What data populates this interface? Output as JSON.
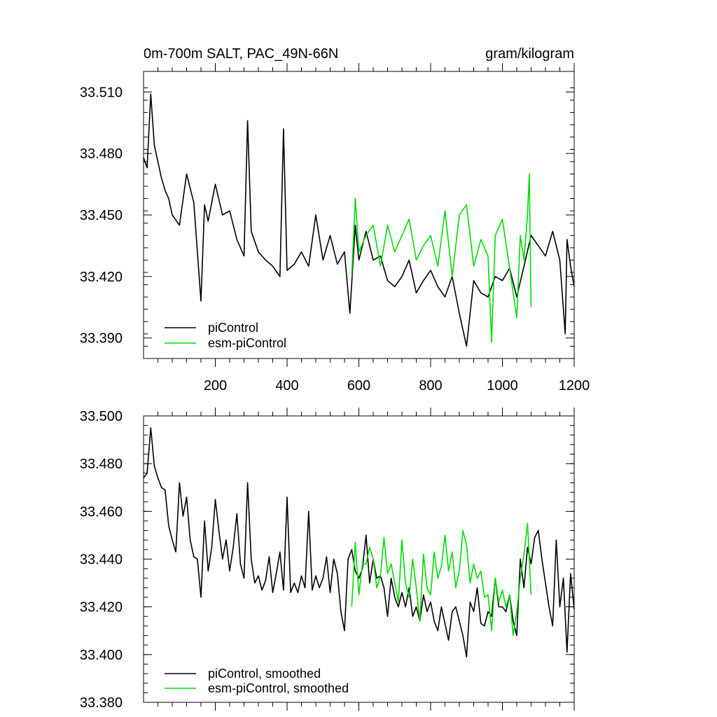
{
  "chart_data": [
    {
      "type": "line",
      "title": "0m-700m SALT, PAC_49N-66N",
      "units": "gram/kilogram",
      "xlim": [
        0,
        1200
      ],
      "ylim": [
        33.38,
        33.52
      ],
      "xticks": [
        200,
        400,
        600,
        800,
        1000,
        1200
      ],
      "xtick_labels": [
        "200",
        "400",
        "600",
        "800",
        "1000",
        "1200"
      ],
      "yticks": [
        33.39,
        33.42,
        33.45,
        33.48,
        33.51
      ],
      "ytick_labels": [
        "33.390",
        "33.420",
        "33.450",
        "33.480",
        "33.510"
      ],
      "legend_position": "bottom-left",
      "series": [
        {
          "name": "piControl",
          "color": "#000000",
          "x": [
            0,
            10,
            20,
            30,
            40,
            50,
            60,
            70,
            80,
            100,
            120,
            140,
            150,
            160,
            170,
            180,
            200,
            220,
            240,
            260,
            280,
            290,
            300,
            320,
            340,
            360,
            380,
            390,
            400,
            420,
            440,
            460,
            480,
            500,
            520,
            540,
            560,
            575,
            590,
            600,
            620,
            640,
            660,
            680,
            700,
            720,
            740,
            760,
            780,
            800,
            820,
            840,
            860,
            880,
            900,
            920,
            940,
            960,
            980,
            1000,
            1020,
            1040,
            1060,
            1080,
            1100,
            1120,
            1140,
            1160,
            1175,
            1180,
            1190,
            1200
          ],
          "values": [
            33.478,
            33.473,
            33.509,
            33.484,
            33.476,
            33.468,
            33.462,
            33.458,
            33.45,
            33.445,
            33.47,
            33.456,
            33.432,
            33.408,
            33.455,
            33.447,
            33.465,
            33.45,
            33.452,
            33.438,
            33.43,
            33.496,
            33.442,
            33.432,
            33.428,
            33.425,
            33.42,
            33.492,
            33.423,
            33.426,
            33.432,
            33.425,
            33.45,
            33.428,
            33.44,
            33.426,
            33.432,
            33.402,
            33.445,
            33.428,
            33.442,
            33.428,
            33.43,
            33.418,
            33.415,
            33.42,
            33.428,
            33.412,
            33.418,
            33.423,
            33.415,
            33.41,
            33.42,
            33.402,
            33.386,
            33.418,
            33.412,
            33.41,
            33.42,
            33.418,
            33.424,
            33.41,
            33.425,
            33.44,
            33.435,
            33.43,
            33.442,
            33.428,
            33.392,
            33.438,
            33.425,
            33.415
          ]
        },
        {
          "name": "esm-piControl",
          "color": "#00dd00",
          "x": [
            580,
            590,
            600,
            620,
            640,
            660,
            680,
            700,
            720,
            740,
            760,
            780,
            800,
            820,
            840,
            860,
            880,
            900,
            920,
            940,
            960,
            970,
            980,
            1000,
            1020,
            1040,
            1050,
            1060,
            1070,
            1075,
            1080
          ],
          "values": [
            33.42,
            33.458,
            33.432,
            33.44,
            33.445,
            33.425,
            33.445,
            33.432,
            33.44,
            33.448,
            33.428,
            33.435,
            33.44,
            33.425,
            33.452,
            33.42,
            33.45,
            33.455,
            33.425,
            33.438,
            33.43,
            33.388,
            33.44,
            33.448,
            33.424,
            33.4,
            33.44,
            33.428,
            33.45,
            33.47,
            33.405
          ]
        }
      ]
    },
    {
      "type": "line",
      "title": "",
      "units": "",
      "xlim": [
        0,
        1200
      ],
      "ylim": [
        33.38,
        33.5
      ],
      "xticks": [
        200,
        400,
        600,
        800,
        1000,
        1200
      ],
      "xtick_labels": [
        "",
        "",
        "",
        "",
        "",
        ""
      ],
      "yticks": [
        33.38,
        33.4,
        33.42,
        33.44,
        33.46,
        33.48,
        33.5
      ],
      "ytick_labels": [
        "33.380",
        "33.400",
        "33.420",
        "33.440",
        "33.460",
        "33.480",
        "33.500"
      ],
      "legend_position": "bottom-left",
      "series": [
        {
          "name": "piControl, smoothed",
          "color": "#000000",
          "x": [
            0,
            10,
            20,
            30,
            40,
            50,
            60,
            70,
            80,
            90,
            100,
            110,
            120,
            130,
            140,
            150,
            160,
            170,
            180,
            190,
            200,
            210,
            220,
            230,
            240,
            250,
            260,
            270,
            280,
            290,
            300,
            310,
            320,
            330,
            340,
            350,
            360,
            370,
            380,
            390,
            400,
            410,
            420,
            430,
            440,
            450,
            460,
            470,
            480,
            490,
            500,
            510,
            520,
            530,
            540,
            550,
            560,
            570,
            580,
            590,
            600,
            610,
            620,
            630,
            640,
            650,
            660,
            670,
            680,
            690,
            700,
            710,
            720,
            730,
            740,
            750,
            760,
            770,
            780,
            790,
            800,
            810,
            820,
            830,
            840,
            850,
            860,
            870,
            880,
            890,
            900,
            910,
            920,
            930,
            940,
            950,
            960,
            970,
            980,
            990,
            1000,
            1010,
            1020,
            1030,
            1040,
            1050,
            1060,
            1070,
            1080,
            1090,
            1100,
            1110,
            1120,
            1130,
            1140,
            1150,
            1160,
            1170,
            1180,
            1190,
            1200
          ],
          "values": [
            33.474,
            33.476,
            33.495,
            33.479,
            33.474,
            33.47,
            33.469,
            33.454,
            33.448,
            33.443,
            33.472,
            33.458,
            33.466,
            33.448,
            33.441,
            33.44,
            33.424,
            33.456,
            33.435,
            33.445,
            33.465,
            33.452,
            33.44,
            33.448,
            33.435,
            33.445,
            33.459,
            33.438,
            33.432,
            33.472,
            33.44,
            33.43,
            33.433,
            33.427,
            33.431,
            33.441,
            33.426,
            33.434,
            33.443,
            33.427,
            33.466,
            33.426,
            33.43,
            33.426,
            33.433,
            33.428,
            33.46,
            33.427,
            33.433,
            33.428,
            33.432,
            33.441,
            33.426,
            33.44,
            33.434,
            33.418,
            33.41,
            33.44,
            33.444,
            33.435,
            33.432,
            33.436,
            33.45,
            33.43,
            33.44,
            33.432,
            33.433,
            33.428,
            33.416,
            33.432,
            33.424,
            33.42,
            33.426,
            33.42,
            33.428,
            33.416,
            33.42,
            33.414,
            33.425,
            33.418,
            33.422,
            33.414,
            33.41,
            33.42,
            33.413,
            33.406,
            33.418,
            33.42,
            33.414,
            33.408,
            33.399,
            33.422,
            33.418,
            33.428,
            33.413,
            33.412,
            33.418,
            33.416,
            33.432,
            33.42,
            33.42,
            33.418,
            33.425,
            33.414,
            33.408,
            33.44,
            33.428,
            33.445,
            33.438,
            33.449,
            33.452,
            33.44,
            33.43,
            33.42,
            33.412,
            33.448,
            33.42,
            33.432,
            33.401,
            33.434,
            33.419
          ]
        },
        {
          "name": "esm-piControl, smoothed",
          "color": "#00dd00",
          "x": [
            580,
            590,
            600,
            610,
            620,
            630,
            640,
            650,
            660,
            670,
            680,
            690,
            700,
            710,
            720,
            730,
            740,
            750,
            760,
            770,
            780,
            790,
            800,
            810,
            820,
            830,
            840,
            850,
            860,
            870,
            880,
            890,
            900,
            910,
            920,
            930,
            940,
            950,
            960,
            970,
            980,
            990,
            1000,
            1010,
            1020,
            1030,
            1040,
            1050,
            1060,
            1070,
            1080
          ],
          "values": [
            33.42,
            33.447,
            33.425,
            33.438,
            33.438,
            33.445,
            33.44,
            33.428,
            33.433,
            33.449,
            33.434,
            33.438,
            33.43,
            33.422,
            33.448,
            33.43,
            33.424,
            33.44,
            33.428,
            33.414,
            33.442,
            33.428,
            33.425,
            33.443,
            33.432,
            33.437,
            33.45,
            33.435,
            33.443,
            33.428,
            33.435,
            33.452,
            33.446,
            33.43,
            33.438,
            33.432,
            33.435,
            33.424,
            33.425,
            33.41,
            33.432,
            33.422,
            33.427,
            33.42,
            33.425,
            33.408,
            33.418,
            33.432,
            33.442,
            33.455,
            33.425
          ]
        }
      ]
    }
  ]
}
